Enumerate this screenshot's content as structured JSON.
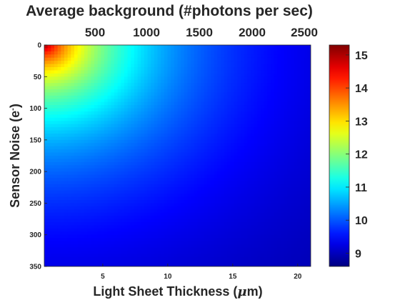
{
  "chart_data": {
    "type": "heatmap",
    "title": "Average background (#photons per sec)",
    "xlabel": "Light Sheet Thickness",
    "xlabel_unit_open": " (",
    "xlabel_unit_mu": "μ",
    "xlabel_unit_close": "m)",
    "ylabel": "Sensor Noise (e",
    "ylabel_sup": "-",
    "ylabel_close": ")",
    "x": {
      "min": 0.5,
      "max": 21,
      "ticks": [
        5,
        10,
        15,
        20
      ]
    },
    "y": {
      "min": 0,
      "max": 350,
      "reversed": true,
      "ticks": [
        0,
        50,
        100,
        150,
        200,
        250,
        300,
        350
      ]
    },
    "top_axis": {
      "ticks": [
        500,
        1000,
        1500,
        2000,
        2500
      ]
    },
    "colorbar": {
      "min": 8.6,
      "max": 15.3,
      "ticks": [
        9,
        10,
        11,
        12,
        13,
        14,
        15
      ],
      "colormap": "jet"
    },
    "surface": {
      "peak_value": 15.2,
      "peak_at": {
        "x": 0.5,
        "y": 0
      },
      "value_at_max_x_max_y": 8.7,
      "contours_from_plot": [
        {
          "value": 12,
          "x_at_y0": 3.8,
          "y_at_x_min": 60
        },
        {
          "value": 11,
          "x_at_y0": 7.5,
          "y_at_x_min": 118
        },
        {
          "value": 10,
          "x_at_y0": 12.5,
          "y_at_x_min": 195
        },
        {
          "value": 9,
          "x_at_y0": 21,
          "y_at_x_min": 330
        }
      ]
    }
  }
}
